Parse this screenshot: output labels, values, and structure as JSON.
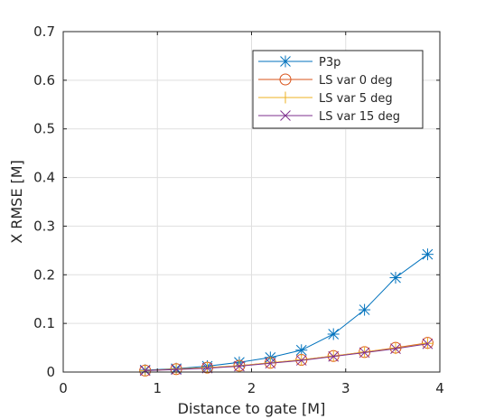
{
  "chart_data": {
    "type": "line",
    "title": "",
    "xlabel": "Distance to gate [M]",
    "ylabel": "X RMSE [M]",
    "xlim": [
      0,
      4
    ],
    "ylim": [
      0,
      0.7
    ],
    "x_ticks": [
      "0",
      "1",
      "2",
      "3",
      "4"
    ],
    "y_ticks": [
      "0",
      "0.1",
      "0.2",
      "0.3",
      "0.4",
      "0.5",
      "0.6",
      "0.7"
    ],
    "grid": true,
    "legend_position": "top-right",
    "x": [
      0.87,
      1.2,
      1.53,
      1.87,
      2.2,
      2.53,
      2.87,
      3.2,
      3.53,
      3.87
    ],
    "series": [
      {
        "name": "P3p",
        "color": "#0072BD",
        "marker": "asterisk",
        "values": [
          0.004,
          0.007,
          0.012,
          0.02,
          0.03,
          0.045,
          0.078,
          0.128,
          0.194,
          0.242
        ]
      },
      {
        "name": "LS var 0 deg",
        "color": "#D95319",
        "marker": "circle",
        "values": [
          0.003,
          0.006,
          0.009,
          0.013,
          0.019,
          0.025,
          0.033,
          0.041,
          0.05,
          0.06
        ]
      },
      {
        "name": "LS var 5 deg",
        "color": "#EDB120",
        "marker": "plus",
        "values": [
          0.003,
          0.006,
          0.009,
          0.013,
          0.019,
          0.025,
          0.033,
          0.041,
          0.049,
          0.059
        ]
      },
      {
        "name": "LS var 15 deg",
        "color": "#7E2F8E",
        "marker": "cross",
        "values": [
          0.003,
          0.005,
          0.008,
          0.012,
          0.018,
          0.024,
          0.032,
          0.04,
          0.048,
          0.058
        ]
      }
    ]
  }
}
